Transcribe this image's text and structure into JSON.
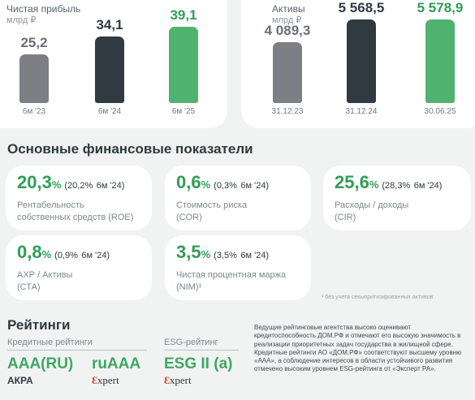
{
  "colors": {
    "bar_gray": "#7d7f84",
    "bar_dark": "#2f3b40",
    "bar_green": "#4fb36f",
    "accent_green": "#2f9e57"
  },
  "chart_data": [
    {
      "type": "bar",
      "title": "Чистая прибыль",
      "ylabel": "млрд ₽",
      "categories": [
        "6м '23",
        "6м '24",
        "6м '25"
      ],
      "values": [
        25.2,
        34.1,
        39.1
      ],
      "value_labels": [
        "25,2",
        "34,1",
        "39,1"
      ],
      "ylim": [
        0,
        45
      ]
    },
    {
      "type": "bar",
      "title": "Активы",
      "ylabel": "млрд ₽",
      "categories": [
        "31.12.23",
        "31.12.24",
        "30.06.25"
      ],
      "values": [
        4089.3,
        5568.5,
        5578.9
      ],
      "value_labels": [
        "4 089,3",
        "5 568,5",
        "5 578,9"
      ],
      "ylim": [
        0,
        6500
      ]
    }
  ],
  "financials": {
    "title": "Основные финансовые показатели",
    "kpis": [
      {
        "value": "20,3",
        "unit": "%",
        "prev_val": "(20,2%",
        "prev_period": "6м '24)",
        "label1": "Рентабельность",
        "label2": "собственных средств (ROE)"
      },
      {
        "value": "0,6",
        "unit": "%",
        "prev_val": "(0,3%",
        "prev_period": "6м '24)",
        "label1": "Стоимость риска",
        "label2": "(COR)"
      },
      {
        "value": "25,6",
        "unit": "%",
        "prev_val": "(28,3%",
        "prev_period": "6м '24)",
        "label1": "Расходы / доходы",
        "label2": "(CIR)"
      },
      {
        "value": "0,8",
        "unit": "%",
        "prev_val": "(0,9%",
        "prev_period": "6м '24)",
        "label1": "АХР / Активы",
        "label2": "(СТА)"
      },
      {
        "value": "3,5",
        "unit": "%",
        "prev_val": "(3,5%",
        "prev_period": "6м '24)",
        "label1": "Чистая процентная маржа",
        "label2": "(NIM)¹"
      }
    ],
    "footnote": "¹ без учета секьюритизированных активов"
  },
  "ratings": {
    "title": "Рейтинги",
    "credit_head": "Кредитные рейтинги",
    "esg_head": "ESG-рейтинг",
    "items": [
      {
        "rating": "AAA(RU)",
        "agency": "АКРА"
      },
      {
        "rating": "ruAAA",
        "agency_mark": "Ɛ",
        "agency_rest": "xpert"
      },
      {
        "rating": "ESG II (a)",
        "agency_mark": "Ɛ",
        "agency_rest": "xpert"
      }
    ],
    "paragraph": "Ведущие рейтинговые агентства высоко оценивают кредитоспособность ДОМ.РФ и отмечают его высокую значимость в реализации приоритетных задач государства в жилищной сфере. Кредитные рейтинги АО «ДОМ.РФ» соответствуют высшему уровню «ААА», а соблюдение интересов в области устойчивого развития отмечено высоким уровнем ESG-рейтинга от «Эксперт РА»."
  }
}
